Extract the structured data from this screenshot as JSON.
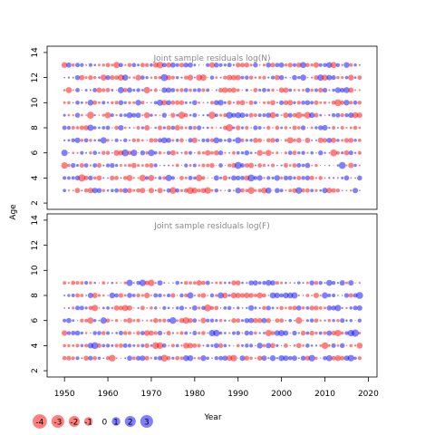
{
  "chart_data": {
    "type": "scatter",
    "ylabel": "Age",
    "xlabel": "Year",
    "x_range": [
      1946,
      2022
    ],
    "x_ticks": [
      1950,
      1960,
      1970,
      1980,
      1990,
      2000,
      2010,
      2020
    ],
    "panels": [
      {
        "title": "Joint sample residuals log(N)",
        "ylim": [
          1.5,
          14.5
        ],
        "y_ticks": [
          2,
          4,
          6,
          8,
          10,
          12,
          14
        ],
        "ages": [
          3,
          4,
          5,
          6,
          7,
          8,
          9,
          10,
          11,
          12,
          13
        ],
        "years": [
          1950,
          2018
        ],
        "seed": 7
      },
      {
        "title": "Joint sample residuals log(F)",
        "ylim": [
          1.5,
          14.5
        ],
        "y_ticks": [
          2,
          4,
          6,
          8,
          10,
          12,
          14
        ],
        "ages": [
          3,
          4,
          5,
          6,
          7,
          8,
          9
        ],
        "years": [
          1950,
          2018
        ],
        "seed": 19
      }
    ],
    "legend": {
      "values": [
        -4,
        -3,
        -2,
        -1,
        0,
        1,
        2,
        3
      ],
      "labels": [
        "-4",
        "-3",
        "-2",
        "-1",
        "0",
        "1",
        "2",
        "3"
      ],
      "negative_color": "#ff0000",
      "positive_color": "#0000ff",
      "placement": "bottom-left"
    }
  }
}
